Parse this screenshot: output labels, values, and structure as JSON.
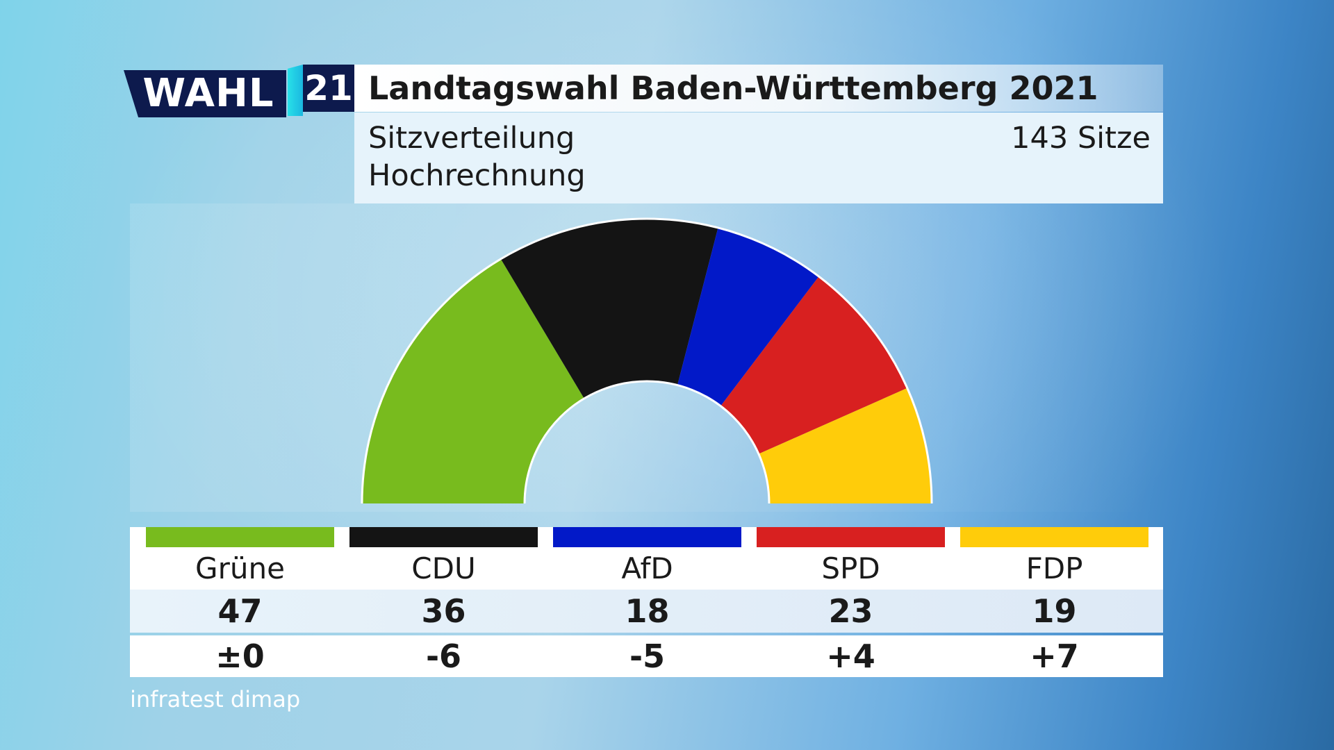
{
  "logo": {
    "wahl": "WAHL",
    "year": "21"
  },
  "header": {
    "title": "Landtagswahl Baden-Württemberg 2021",
    "subtitle1": "Sitzverteilung",
    "subtitle2": "Hochrechnung",
    "total_seats": "143 Sitze"
  },
  "chart_data": {
    "type": "hemicycle",
    "title": "Landtagswahl Baden-Württemberg 2021",
    "subtitle": "Sitzverteilung Hochrechnung",
    "total": 143,
    "categories": [
      "Grüne",
      "CDU",
      "AfD",
      "SPD",
      "FDP"
    ],
    "values": [
      47,
      36,
      18,
      23,
      19
    ],
    "changes": [
      "±0",
      "-6",
      "-5",
      "+4",
      "+7"
    ],
    "colors": [
      "#78bb1e",
      "#141414",
      "#0219c8",
      "#d82020",
      "#ffcc0a"
    ]
  },
  "table": {
    "parties": [
      {
        "name": "Grüne",
        "seats": "47",
        "change": "±0"
      },
      {
        "name": "CDU",
        "seats": "36",
        "change": "-6"
      },
      {
        "name": "AfD",
        "seats": "18",
        "change": "-5"
      },
      {
        "name": "SPD",
        "seats": "23",
        "change": "+4"
      },
      {
        "name": "FDP",
        "seats": "19",
        "change": "+7"
      }
    ]
  },
  "source": "infratest dimap"
}
